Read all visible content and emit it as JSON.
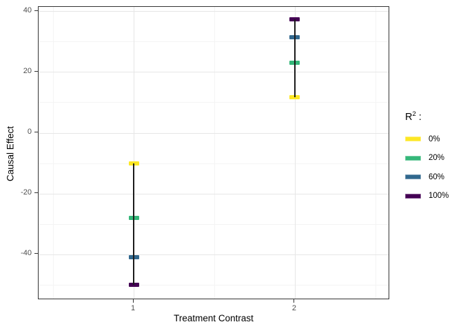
{
  "figure": {
    "background": "#FFFFFF",
    "panel_border_color": "#333333",
    "grid_major_color": "#E6E6E6",
    "grid_minor_color": "#F4F4F4",
    "tick_color": "#333333",
    "tick_label_color": "#4D4D4D",
    "range_line_color": "#1A1A1A"
  },
  "axes": {
    "x_title": "Treatment Contrast",
    "y_title": "Causal Effect"
  },
  "legend": {
    "title_base": "R",
    "title_sup": "2",
    "title_suffix": " :",
    "items": [
      {
        "label": "0%",
        "color": "#FDE725"
      },
      {
        "label": "20%",
        "color": "#35B779"
      },
      {
        "label": "60%",
        "color": "#31688E"
      },
      {
        "label": "100%",
        "color": "#440154"
      }
    ]
  },
  "chart_data": {
    "type": "pointrange",
    "title": "",
    "xlabel": "Treatment Contrast",
    "ylabel": "Causal Effect",
    "legend_title": "R^2 :",
    "legend_position": "right",
    "grid": true,
    "x": [
      1,
      2
    ],
    "x_tick_labels": [
      "1",
      "2"
    ],
    "x_minor_ticks": [
      0.5,
      1.5,
      2.5
    ],
    "y_ticks": [
      40,
      20,
      0,
      -20,
      -40
    ],
    "y_tick_labels": [
      "40",
      "20",
      "0",
      "-20",
      "-40"
    ],
    "y_minor_ticks": [
      30,
      10,
      -10,
      -30,
      -50
    ],
    "xlim": [
      0.41,
      2.59
    ],
    "ylim": [
      -55,
      41.4
    ],
    "series": [
      {
        "name": "0%",
        "color": "#FDE725",
        "values": [
          -10,
          11.7
        ]
      },
      {
        "name": "20%",
        "color": "#35B779",
        "values": [
          -28,
          23
        ]
      },
      {
        "name": "60%",
        "color": "#31688E",
        "values": [
          -41,
          31.5
        ]
      },
      {
        "name": "100%",
        "color": "#440154",
        "values": [
          -50,
          37.3
        ]
      }
    ],
    "ranges": [
      {
        "x": 1,
        "ymin": -50,
        "ymax": -10
      },
      {
        "x": 2,
        "ymin": 11.7,
        "ymax": 37.3
      }
    ]
  }
}
